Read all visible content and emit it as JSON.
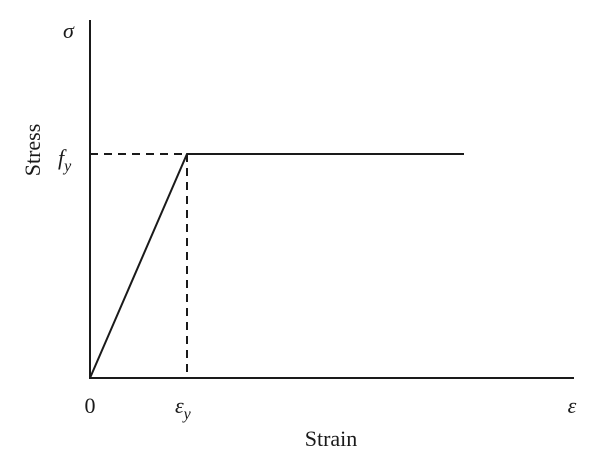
{
  "axes": {
    "y_symbol": "σ",
    "y_label": "Stress",
    "x_symbol": "ε",
    "x_label": "Strain",
    "origin": "0"
  },
  "yield_stress": {
    "base": "f",
    "sub": "y"
  },
  "yield_strain": {
    "base": "ε",
    "sub": "y"
  }
}
